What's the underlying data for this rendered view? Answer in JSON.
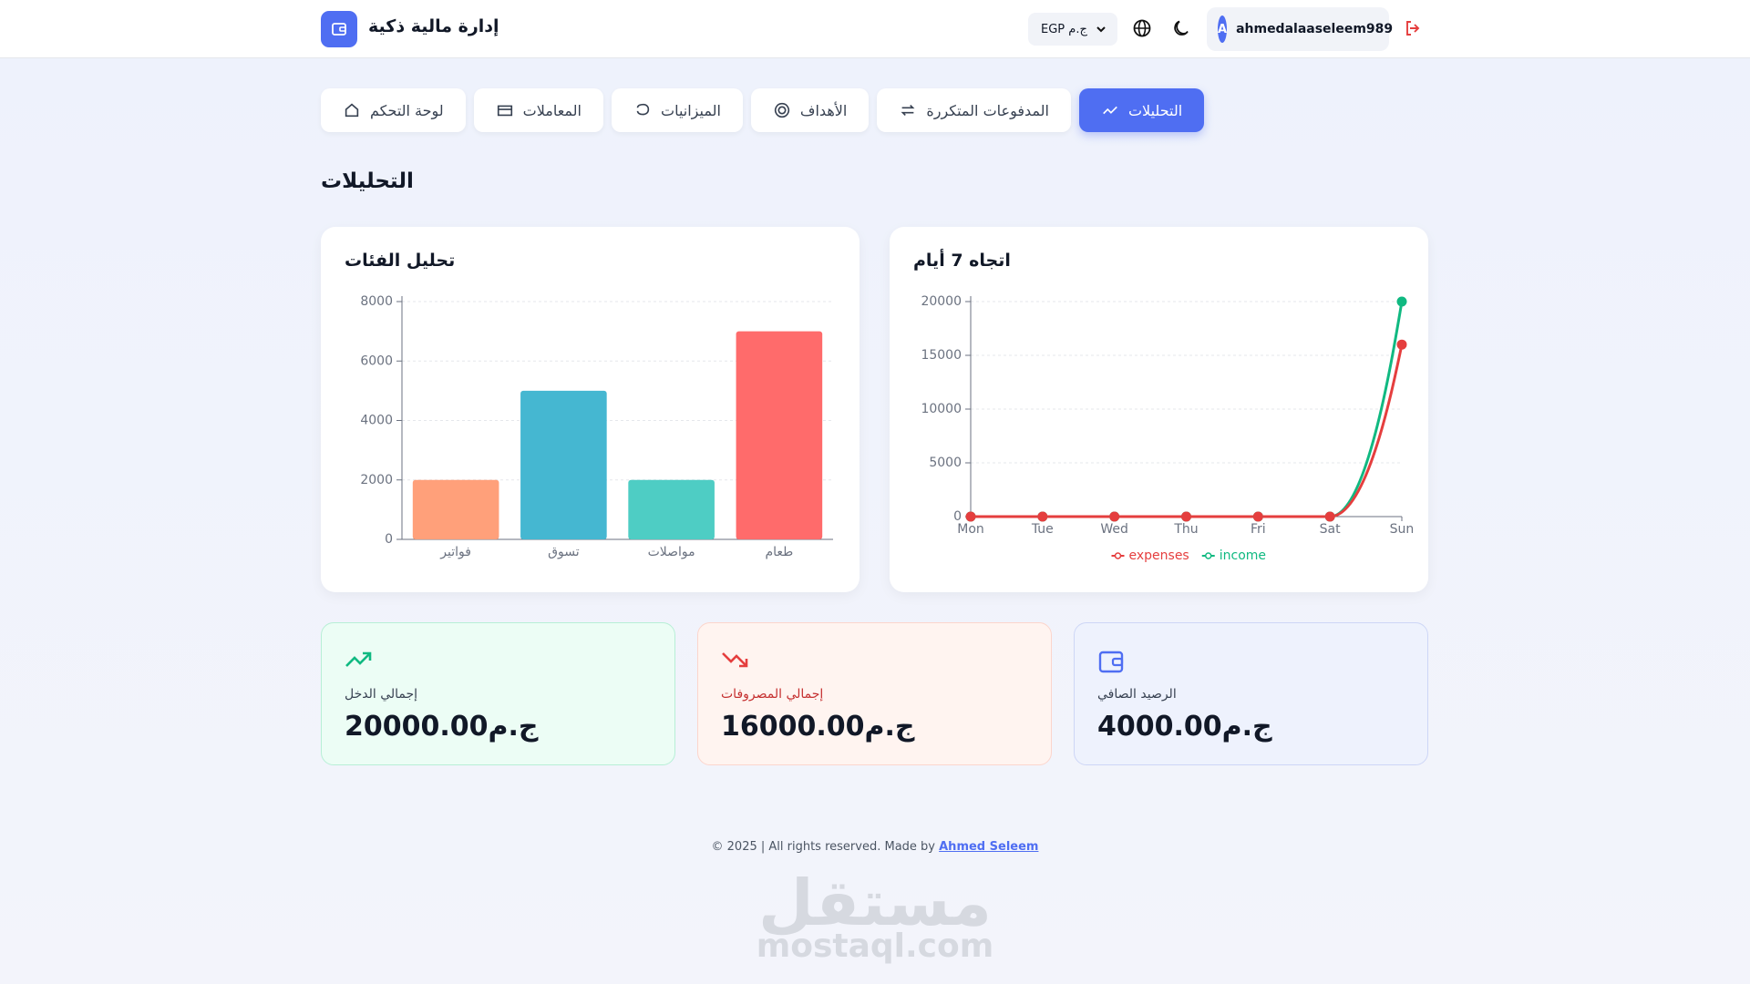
{
  "header": {
    "title": "إدارة مالية ذكية",
    "currency_option": "EGP ج.م",
    "avatar_initial": "A",
    "username": "ahmedalaaseleem989"
  },
  "nav": {
    "items": [
      "لوحة التحكم",
      "المعاملات",
      "الميزانيات",
      "الأهداف",
      "المدفوعات المتكررة",
      "التحليلات"
    ],
    "active_index": 5
  },
  "page_title": "التحليلات",
  "chart_data": [
    {
      "type": "bar",
      "title": "تحليل الفئات",
      "categories": [
        "فواتير",
        "تسوق",
        "مواصلات",
        "طعام"
      ],
      "values": [
        2000,
        5000,
        2000,
        7000
      ],
      "colors": [
        "#ffa07a",
        "#45b7d1",
        "#4ecdc4",
        "#ff6b6b"
      ],
      "ylim": [
        0,
        8000
      ],
      "yticks": [
        0,
        2000,
        4000,
        6000,
        8000
      ],
      "grid": true
    },
    {
      "type": "line",
      "title": "اتجاه 7 أيام",
      "categories": [
        "Mon",
        "Tue",
        "Wed",
        "Thu",
        "Fri",
        "Sat",
        "Sun"
      ],
      "series": [
        {
          "name": "expenses",
          "color": "#e53e3e",
          "values": [
            0,
            0,
            0,
            0,
            0,
            0,
            16000
          ]
        },
        {
          "name": "income",
          "color": "#10b981",
          "values": [
            0,
            0,
            0,
            0,
            0,
            0,
            20000
          ]
        }
      ],
      "ylim": [
        0,
        20000
      ],
      "yticks": [
        0,
        5000,
        10000,
        15000,
        20000
      ],
      "grid": true,
      "legend": "bottom"
    }
  ],
  "stats": [
    {
      "label": "إجمالي الدخل",
      "amount": "20000.00ج.م"
    },
    {
      "label": "إجمالي المصروفات",
      "amount": "16000.00ج.م"
    },
    {
      "label": "الرصيد الصافي",
      "amount": "4000.00ج.م"
    }
  ],
  "footer": {
    "text": "© 2025 | All rights reserved. Made by",
    "link": "Ahmed Seleem"
  },
  "watermark": {
    "arabic": "مستقل",
    "latin": "mostaql.com"
  }
}
